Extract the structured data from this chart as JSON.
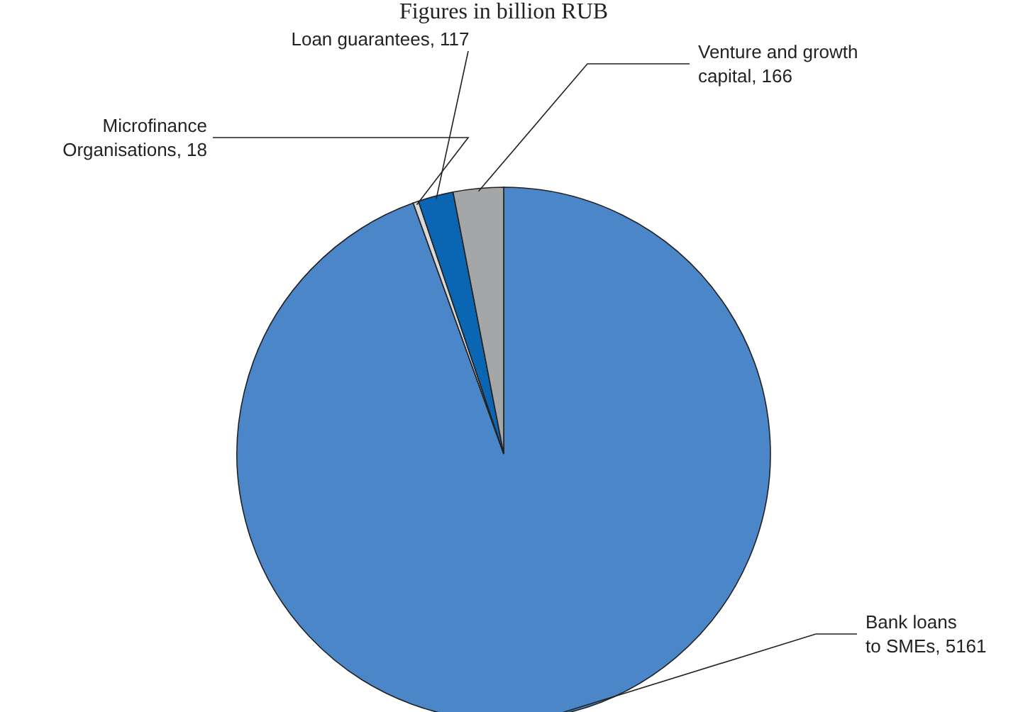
{
  "chart_data": {
    "type": "pie",
    "title": "Figures in billion RUB",
    "categories": [
      "Bank loans to SMEs",
      "Microfinance Organisations",
      "Loan guarantees",
      "Venture and growth capital"
    ],
    "values": [
      5161,
      18,
      117,
      166
    ],
    "colors": [
      "#4a86c8",
      "#d9d9d9",
      "#0a66b2",
      "#a5a6a8"
    ],
    "value_labels": [
      ", 5161",
      ", 18",
      ", 117",
      ", 166"
    ]
  }
}
